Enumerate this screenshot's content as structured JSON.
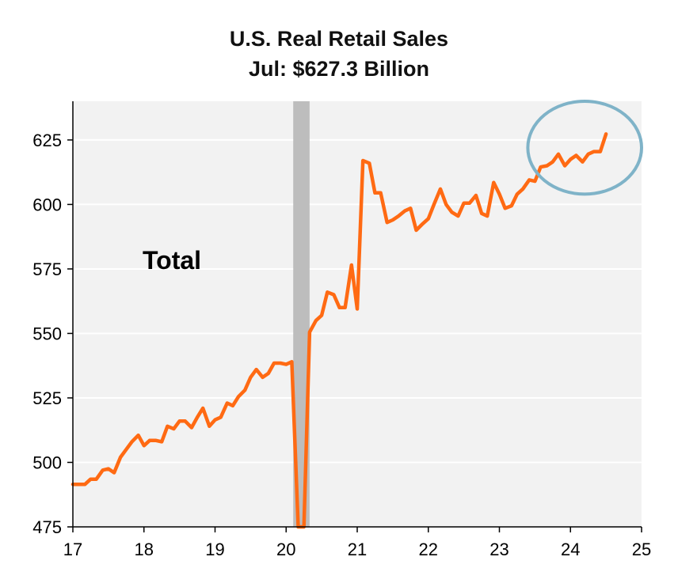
{
  "chart_data": {
    "type": "line",
    "title": "U.S. Real Retail Sales",
    "subtitle": "Jul: $627.3 Billion",
    "annotation": "Total",
    "xlim": [
      17,
      25
    ],
    "ylim": [
      475,
      640
    ],
    "x_ticks": [
      "17",
      "18",
      "19",
      "20",
      "21",
      "22",
      "23",
      "24",
      "25"
    ],
    "y_ticks": [
      "475",
      "500",
      "525",
      "550",
      "575",
      "600",
      "625"
    ],
    "x_tick_values": [
      17,
      18,
      19,
      20,
      21,
      22,
      23,
      24,
      25
    ],
    "y_tick_values": [
      475,
      500,
      525,
      550,
      575,
      600,
      625
    ],
    "recession_band": [
      20.1,
      20.33
    ],
    "highlight_ellipse": {
      "center_x": 24.2,
      "center_y": 622,
      "radius_x": 0.8,
      "radius_y": 18
    },
    "grid": true,
    "colors": {
      "line": "#FF6A13",
      "recession": "#BDBDBD",
      "plot_bg": "#F2F2F2",
      "ellipse": "#7FB3C8",
      "grid": "#FFFFFF"
    },
    "series": [
      {
        "x": [
          17.0,
          17.08,
          17.17,
          17.25,
          17.33,
          17.42,
          17.5,
          17.58,
          17.67,
          17.75,
          17.83,
          17.92,
          18.0,
          18.08,
          18.17,
          18.25,
          18.33,
          18.42,
          18.5,
          18.58,
          18.67,
          18.75,
          18.83,
          18.92,
          19.0,
          19.08,
          19.17,
          19.25,
          19.33,
          19.42,
          19.5,
          19.58,
          19.67,
          19.75,
          19.83,
          19.92,
          20.0,
          20.08,
          20.17,
          20.25,
          20.33,
          20.42,
          20.5,
          20.58,
          20.67,
          20.75,
          20.83,
          20.92,
          21.0,
          21.08,
          21.17,
          21.25,
          21.33,
          21.42,
          21.5,
          21.58,
          21.67,
          21.75,
          21.83,
          21.92,
          22.0,
          22.08,
          22.17,
          22.25,
          22.33,
          22.42,
          22.5,
          22.58,
          22.67,
          22.75,
          22.83,
          22.92,
          23.0,
          23.08,
          23.17,
          23.25,
          23.33,
          23.42,
          23.5,
          23.58,
          23.67,
          23.75,
          23.83,
          23.92,
          24.0,
          24.08,
          24.17,
          24.25,
          24.33,
          24.42,
          24.5
        ],
        "values": [
          491.5,
          491.5,
          491.5,
          493.5,
          493.5,
          497.0,
          497.5,
          496.0,
          502.0,
          505.0,
          508.0,
          510.5,
          506.5,
          508.5,
          508.5,
          508.0,
          514.0,
          513.0,
          516.0,
          516.0,
          513.5,
          517.5,
          521.0,
          514.0,
          516.5,
          517.5,
          523.0,
          522.0,
          525.5,
          528.0,
          533.0,
          536.0,
          533.0,
          534.5,
          538.5,
          538.5,
          538.0,
          539.0,
          474.0,
          474.0,
          550.5,
          555.0,
          557.0,
          566.0,
          565.0,
          560.0,
          560.0,
          576.5,
          559.5,
          617.0,
          616.0,
          604.5,
          604.5,
          593.0,
          594.0,
          595.5,
          597.5,
          598.5,
          590.0,
          592.5,
          594.5,
          600.0,
          606.0,
          600.0,
          597.0,
          595.5,
          600.5,
          600.5,
          603.5,
          596.5,
          595.5,
          608.5,
          604.0,
          598.5,
          599.5,
          604.0,
          606.0,
          609.5,
          609.0,
          614.5,
          615.0,
          616.5,
          619.5,
          615.0,
          617.5,
          619.0,
          616.5,
          619.5,
          620.5,
          620.5,
          627.3
        ]
      }
    ]
  }
}
